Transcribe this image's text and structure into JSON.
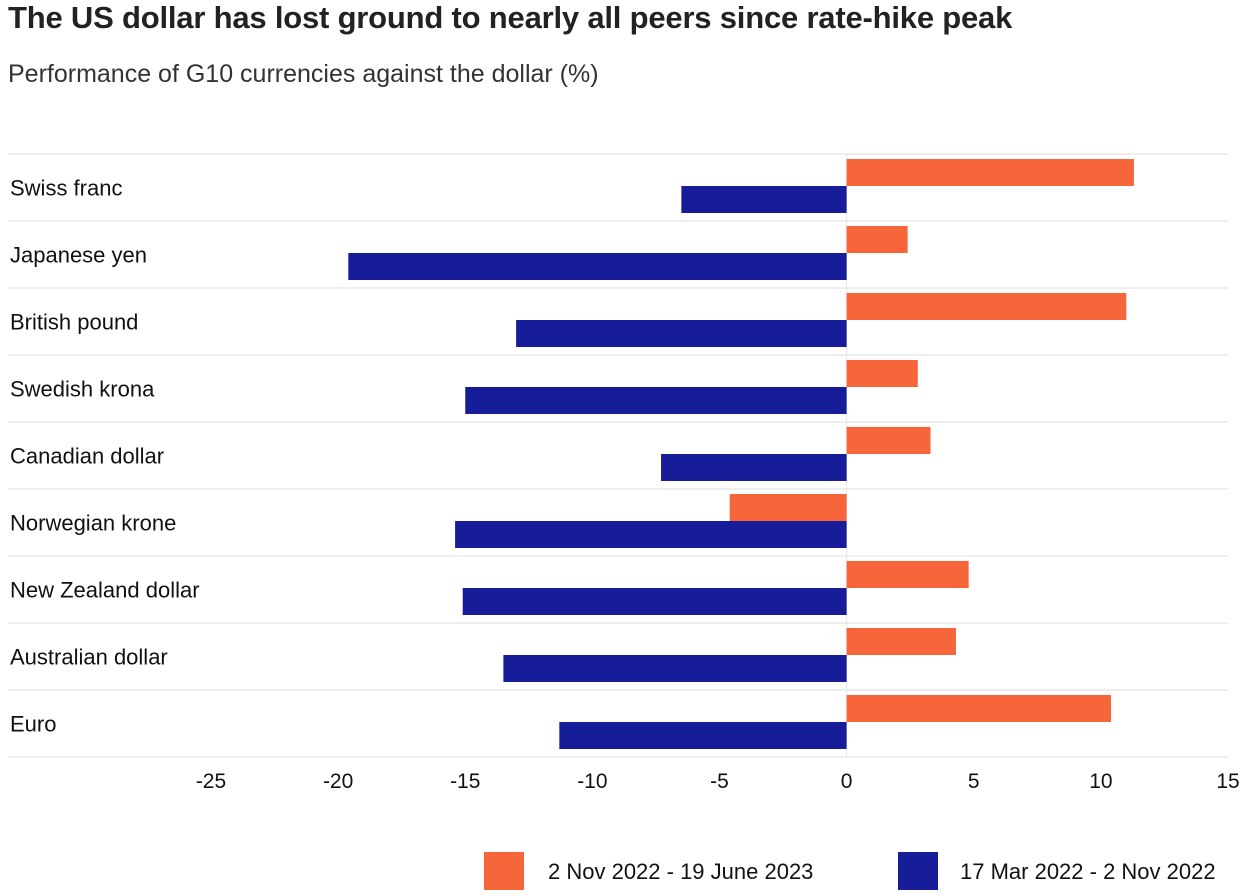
{
  "title": "The US dollar has lost ground to nearly all peers since rate-hike peak",
  "subtitle": "Performance of G10 currencies against the dollar (%)",
  "chart_data": {
    "type": "bar",
    "orientation": "horizontal",
    "title": "The US dollar has lost ground to nearly all peers since rate-hike peak",
    "subtitle": "Performance of G10 currencies against the dollar (%)",
    "xlabel": "",
    "ylabel": "",
    "xlim": [
      -25,
      15
    ],
    "xticks": [
      "-25",
      "-20",
      "-15",
      "-10",
      "-5",
      "0",
      "5",
      "10",
      "15"
    ],
    "grid": "horizontal separators between categories",
    "legend_position": "bottom-right",
    "categories": [
      "Swiss franc",
      "Japanese yen",
      "British pound",
      "Swedish krona",
      "Canadian dollar",
      "Norwegian krone",
      "New Zealand dollar",
      "Australian dollar",
      "Euro"
    ],
    "series": [
      {
        "name": "2 Nov 2022 - 19 June 2023",
        "color": "#f7663a",
        "values": [
          11.3,
          2.4,
          11.0,
          2.8,
          3.3,
          -4.6,
          4.8,
          4.3,
          10.4
        ]
      },
      {
        "name": "17 Mar 2022 - 2 Nov 2022",
        "color": "#171d99",
        "values": [
          -6.5,
          -19.6,
          -13.0,
          -15.0,
          -7.3,
          -15.4,
          -15.1,
          -13.5,
          -11.3
        ]
      }
    ]
  }
}
